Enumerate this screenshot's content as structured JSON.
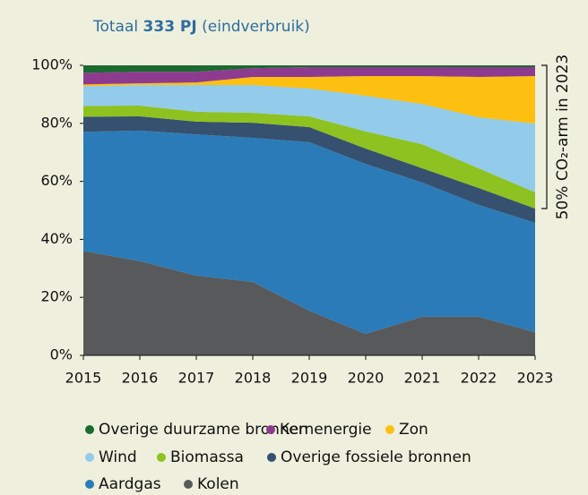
{
  "chart_data": {
    "type": "stacked_area",
    "title_prefix": "Totaal",
    "title_bold": "333 PJ",
    "title_suffix": "(eindverbruik)",
    "annotation": "50% CO₂-arm in 2023",
    "x": [
      2015,
      2016,
      2017,
      2018,
      2019,
      2020,
      2021,
      2022,
      2023
    ],
    "xlim": [
      2015,
      2023
    ],
    "xticks": [
      2015,
      2016,
      2017,
      2018,
      2019,
      2020,
      2021,
      2022,
      2023
    ],
    "ylim": [
      0,
      100
    ],
    "yticks": [
      {
        "value": 0,
        "label": "0%"
      },
      {
        "value": 20,
        "label": "20%"
      },
      {
        "value": 40,
        "label": "40%"
      },
      {
        "value": 60,
        "label": "60%"
      },
      {
        "value": 80,
        "label": "80%"
      },
      {
        "value": 100,
        "label": "100%"
      }
    ],
    "series": [
      {
        "name": "Overige duurzame bronnen",
        "color": "#1b6a30",
        "values": [
          2.6,
          2.2,
          2.2,
          1.0,
          0.6,
          0.6,
          0.6,
          0.6,
          0.6
        ]
      },
      {
        "name": "Kernenergie",
        "color": "#8e3b8f",
        "values": [
          4,
          4,
          3.7,
          3,
          3.4,
          3.1,
          3.1,
          3.4,
          3.1
        ]
      },
      {
        "name": "Zon",
        "color": "#fdc010",
        "values": [
          0.6,
          0.6,
          0.9,
          2.8,
          4,
          6.8,
          9.6,
          13.9,
          16.4
        ]
      },
      {
        "name": "Wind",
        "color": "#93cbea",
        "values": [
          6.8,
          7.1,
          9.2,
          9.6,
          9.6,
          12.3,
          13.9,
          17.6,
          23.7
        ]
      },
      {
        "name": "Biomassa",
        "color": "#8dc220",
        "values": [
          3.7,
          3.7,
          3.4,
          3.4,
          3.7,
          5.9,
          8.3,
          6.8,
          5.6
        ]
      },
      {
        "name": "Overige fossiele bronnen",
        "color": "#36506f",
        "values": [
          5.2,
          4.9,
          4.4,
          5.2,
          5.2,
          5.3,
          4.9,
          5.8,
          4.9
        ]
      },
      {
        "name": "Aardgas",
        "color": "#2b7bb8",
        "values": [
          41.1,
          45,
          48.7,
          49.7,
          58.1,
          58.6,
          46.3,
          38.6,
          37.7
        ]
      },
      {
        "name": "Kolen",
        "color": "#58595b",
        "values": [
          36,
          32.5,
          27.5,
          25.3,
          15.4,
          7.4,
          13.3,
          13.3,
          8
        ]
      }
    ]
  }
}
